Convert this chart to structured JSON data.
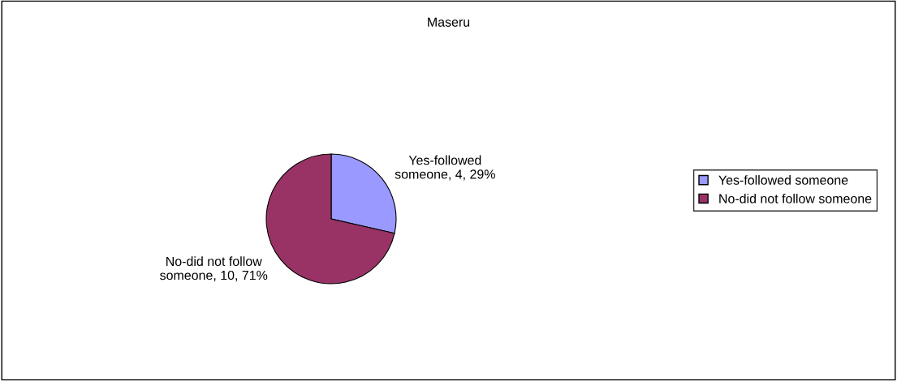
{
  "chart_data": {
    "type": "pie",
    "title": "Maseru",
    "categories": [
      "Yes-followed someone",
      "No-did not follow someone"
    ],
    "values": [
      4,
      10
    ],
    "colors": [
      "#9999ff",
      "#993366"
    ],
    "value_labels": [
      "Yes-followed\nsomeone, 4, 29%",
      "No-did not follow\nsomeone, 10, 71%"
    ],
    "legend": "right"
  }
}
